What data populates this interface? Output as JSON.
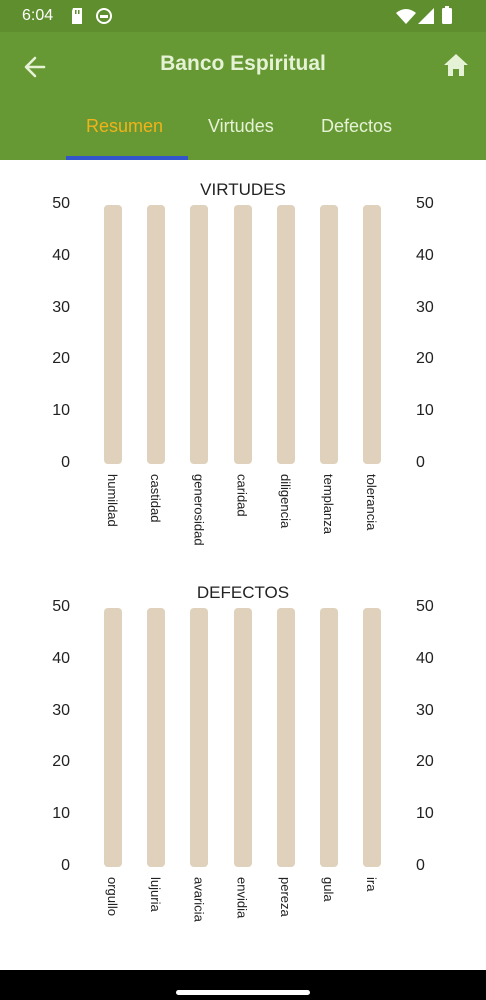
{
  "status_bar": {
    "time": "6:04"
  },
  "app_bar": {
    "title": "Banco Espiritual",
    "tabs": [
      {
        "label": "Resumen",
        "active": true
      },
      {
        "label": "Virtudes",
        "active": false
      },
      {
        "label": "Defectos",
        "active": false
      }
    ]
  },
  "colors": {
    "app_bar": "#669933",
    "tab_active": "#f2b21a",
    "tab_indicator": "#3355cc",
    "bar": "#dfd1bb"
  },
  "chart_data": [
    {
      "type": "bar",
      "title": "VIRTUDES",
      "categories": [
        "humildad",
        "castidad",
        "generosidad",
        "caridad",
        "diligencia",
        "templanza",
        "tolerancia"
      ],
      "values": [
        50,
        50,
        50,
        50,
        50,
        50,
        50
      ],
      "yticks": [
        "50",
        "40",
        "30",
        "20",
        "10",
        "0"
      ],
      "ylim": [
        0,
        50
      ]
    },
    {
      "type": "bar",
      "title": "DEFECTOS",
      "categories": [
        "orgullo",
        "lujuria",
        "avaricia",
        "envidia",
        "pereza",
        "gula",
        "ira"
      ],
      "values": [
        50,
        50,
        50,
        50,
        50,
        50,
        50
      ],
      "yticks": [
        "50",
        "40",
        "30",
        "20",
        "10",
        "0"
      ],
      "ylim": [
        0,
        50
      ]
    }
  ]
}
